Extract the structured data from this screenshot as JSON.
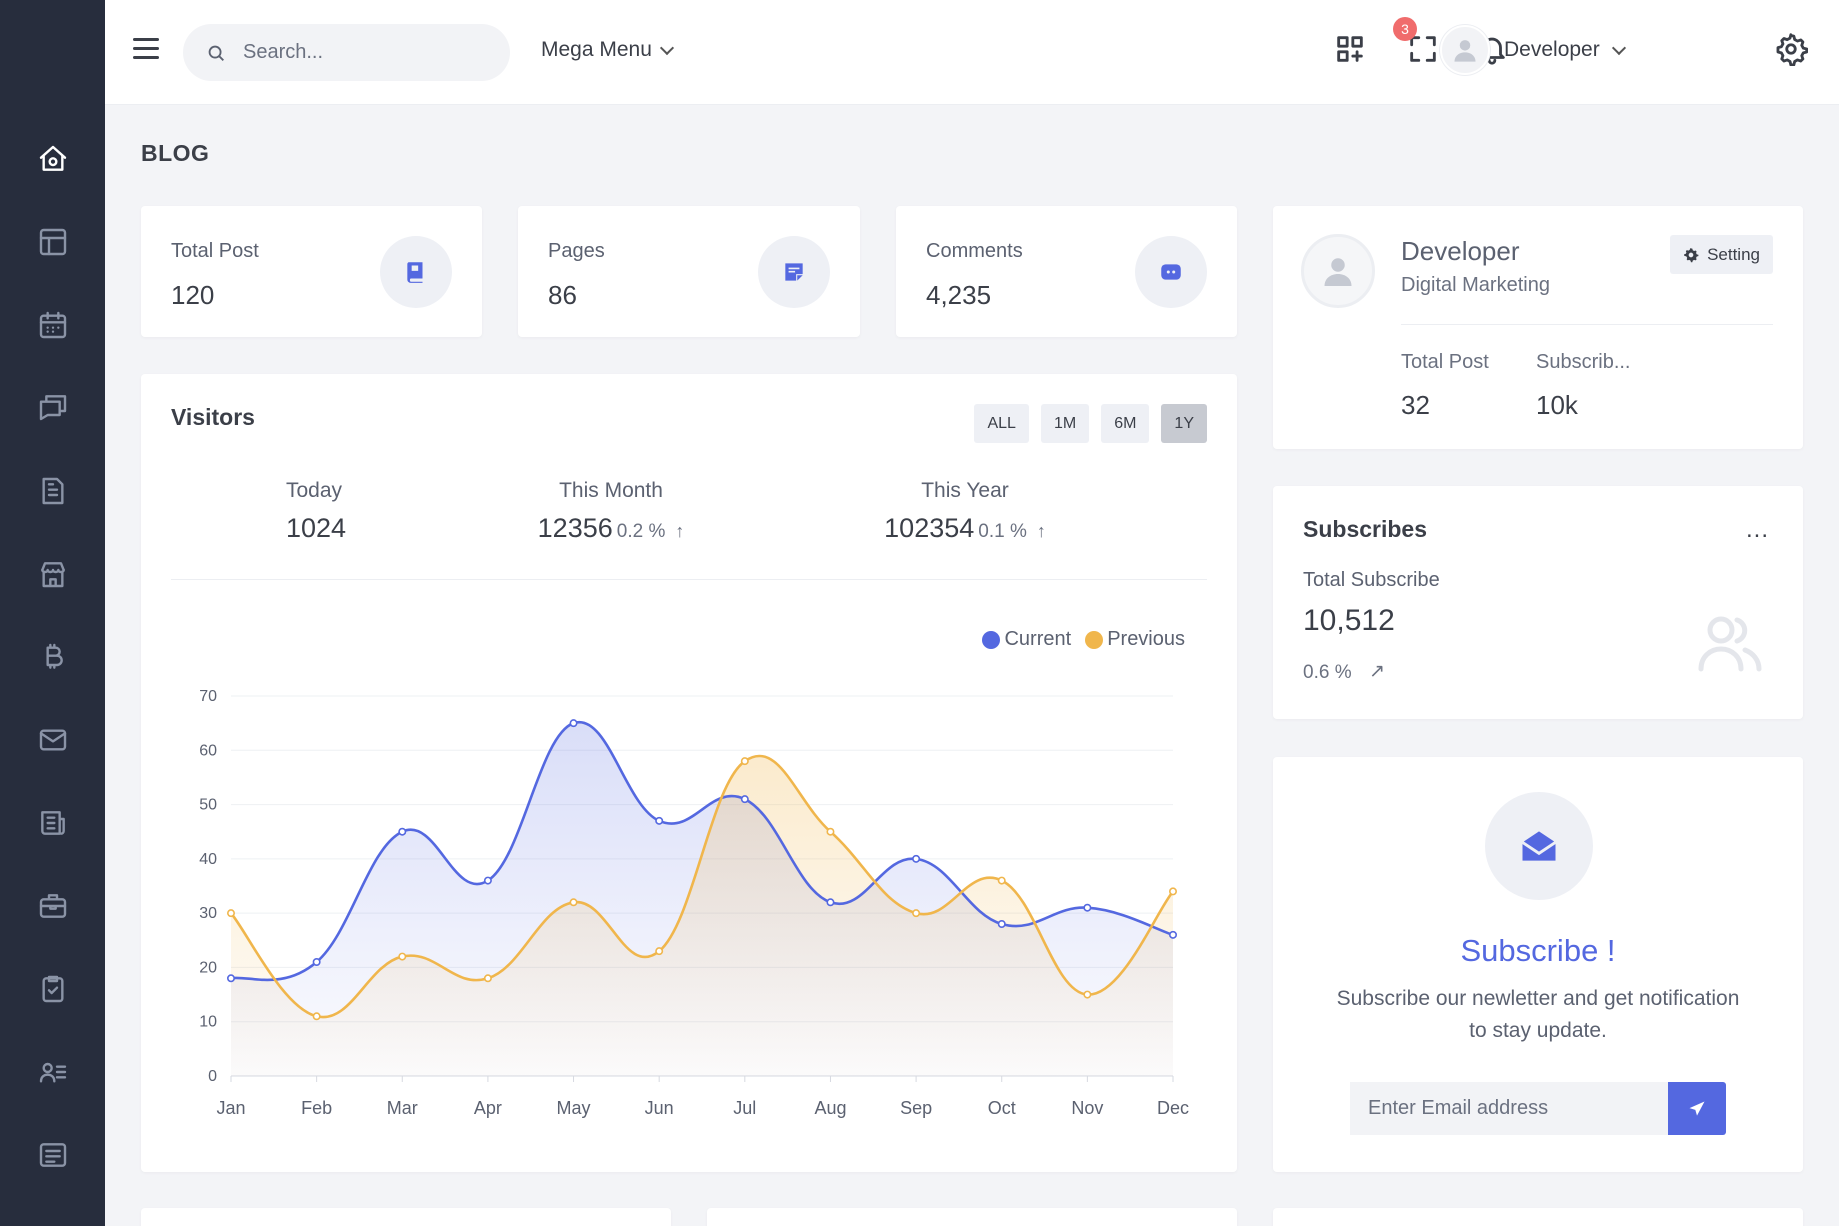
{
  "search": {
    "placeholder": "Search..."
  },
  "header": {
    "mega_menu_label": "Mega Menu",
    "notification_count": "3",
    "user_name": "Developer"
  },
  "page": {
    "title": "BLOG"
  },
  "stats": [
    {
      "label": "Total Post",
      "value": "120",
      "icon": "book-icon"
    },
    {
      "label": "Pages",
      "value": "86",
      "icon": "sticky-note-icon"
    },
    {
      "label": "Comments",
      "value": "4,235",
      "icon": "chat-bubble-icon"
    }
  ],
  "visitors": {
    "title": "Visitors",
    "ranges": [
      "ALL",
      "1M",
      "6M",
      "1Y"
    ],
    "active_range": "1Y",
    "kpis": [
      {
        "label": "Today",
        "value": "1024",
        "pct": "",
        "arrow": ""
      },
      {
        "label": "This Month",
        "value": "12356",
        "pct": "0.2 %",
        "arrow": "↑"
      },
      {
        "label": "This Year",
        "value": "102354",
        "pct": "0.1 %",
        "arrow": "↑"
      }
    ]
  },
  "chart_data": {
    "type": "area",
    "categories": [
      "Jan",
      "Feb",
      "Mar",
      "Apr",
      "May",
      "Jun",
      "Jul",
      "Aug",
      "Sep",
      "Oct",
      "Nov",
      "Dec"
    ],
    "series": [
      {
        "name": "Current",
        "color": "#5468e0",
        "values": [
          18,
          21,
          45,
          36,
          65,
          47,
          51,
          32,
          40,
          28,
          31,
          26
        ]
      },
      {
        "name": "Previous",
        "color": "#f0b64c",
        "values": [
          30,
          11,
          22,
          18,
          32,
          23,
          58,
          45,
          30,
          36,
          15,
          34
        ]
      }
    ],
    "yticks": [
      0,
      10,
      20,
      30,
      40,
      50,
      60,
      70
    ],
    "ylim": [
      0,
      70
    ],
    "grid": true,
    "legend": "top-right"
  },
  "profile": {
    "name": "Developer",
    "role": "Digital Marketing",
    "setting_label": "Setting",
    "stats": [
      {
        "label": "Total Post",
        "value": "32"
      },
      {
        "label": "Subscrib...",
        "value": "10k"
      }
    ]
  },
  "subscribes": {
    "title": "Subscribes",
    "more": "...",
    "label": "Total Subscribe",
    "value": "10,512",
    "pct": "0.6 %",
    "arrow": "↗"
  },
  "subscribe_cta": {
    "title": "Subscribe !",
    "text": "Subscribe our newletter and get notification to stay update.",
    "email_placeholder": "Enter Email address"
  },
  "colors": {
    "accent": "#5468e0",
    "secondary": "#f0b64c",
    "sidebar": "#272d3d",
    "badge": "#f06c6c"
  }
}
